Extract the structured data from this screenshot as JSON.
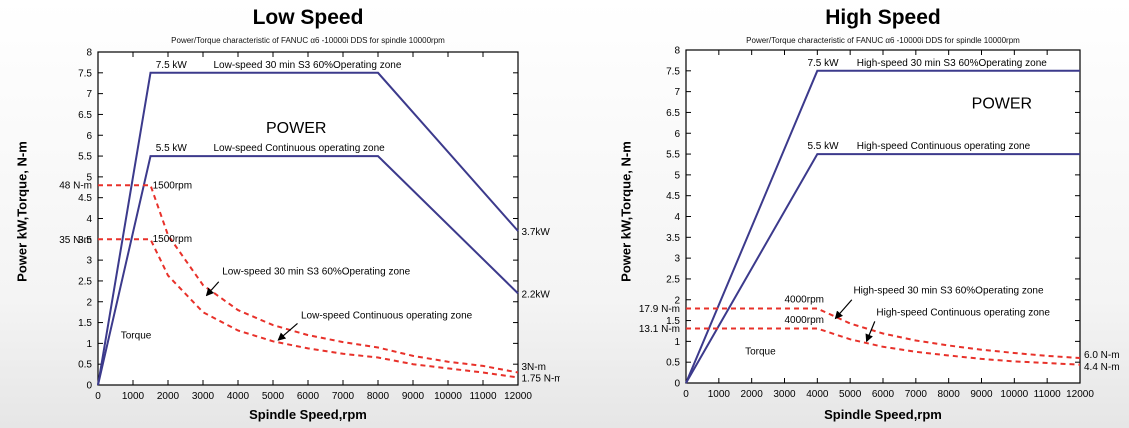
{
  "chart_data": [
    {
      "type": "line",
      "title": "Low Speed",
      "subtitle": "Power/Torque characteristic of FANUC α6 -10000i DDS for spindle 10000rpm",
      "xlabel": "Spindle Speed,rpm",
      "ylabel": "Power kW,Torque, N-m",
      "xlim": [
        0,
        12000
      ],
      "ylim": [
        0,
        8
      ],
      "xticks": [
        0,
        1000,
        2000,
        3000,
        4000,
        5000,
        6000,
        7000,
        8000,
        9000,
        10000,
        11000,
        12000
      ],
      "yticks": [
        0,
        0.5,
        1,
        1.5,
        2,
        2.5,
        3,
        3.5,
        4,
        4.5,
        5,
        5.5,
        6,
        6.5,
        7,
        7.5,
        8
      ],
      "grid": false,
      "series": [
        {
          "style": "power",
          "x": [
            0,
            1500,
            8000,
            12000
          ],
          "y": [
            0,
            7.5,
            7.5,
            3.7
          ]
        },
        {
          "style": "power",
          "x": [
            0,
            1500,
            8000,
            12000
          ],
          "y": [
            0,
            5.5,
            5.5,
            2.2
          ]
        },
        {
          "style": "torque",
          "x": [
            0,
            1500,
            2000,
            3000,
            4000,
            5000,
            6000,
            7000,
            8000,
            9000,
            10000,
            11000,
            12000
          ],
          "y": [
            4.8,
            4.8,
            3.6,
            2.4,
            1.8,
            1.44,
            1.2,
            1.03,
            0.9,
            0.7,
            0.56,
            0.46,
            0.3
          ]
        },
        {
          "style": "torque",
          "x": [
            0,
            1500,
            2000,
            3000,
            4000,
            5000,
            6000,
            7000,
            8000,
            9000,
            10000,
            11000,
            12000
          ],
          "y": [
            3.5,
            3.5,
            2.63,
            1.75,
            1.31,
            1.05,
            0.88,
            0.75,
            0.66,
            0.5,
            0.4,
            0.3,
            0.18
          ]
        }
      ],
      "annotations": [
        {
          "text": "7.5 kW",
          "x": 1650,
          "y": 7.62
        },
        {
          "text": "Low-speed 30 min S3 60%Operating zone",
          "x": 3300,
          "y": 7.62
        },
        {
          "text": "POWER",
          "x": 4800,
          "y": 6.05,
          "size": "big"
        },
        {
          "text": "5.5 kW",
          "x": 1650,
          "y": 5.62
        },
        {
          "text": "Low-speed Continuous operating zone",
          "x": 3300,
          "y": 5.62
        },
        {
          "text": "1500rpm",
          "x": 1560,
          "y": 4.72
        },
        {
          "text": "1500rpm",
          "x": 1560,
          "y": 3.43
        },
        {
          "text": "Low-speed 30 min S3 60%Operating zone",
          "x": 3550,
          "y": 2.65
        },
        {
          "text": "Low-speed Continuous operating zone",
          "x": 5800,
          "y": 1.6
        },
        {
          "text": "Torque",
          "x": 650,
          "y": 1.12
        },
        {
          "text": "3.7kW",
          "x": 12100,
          "y": 3.6
        },
        {
          "text": "2.2kW",
          "x": 12100,
          "y": 2.1
        },
        {
          "text": "3N-m",
          "x": 12100,
          "y": 0.36
        },
        {
          "text": "1.75 N-m",
          "x": 12100,
          "y": 0.08
        }
      ],
      "arrows": [
        {
          "from": [
            3450,
            2.48
          ],
          "to": [
            3100,
            2.15
          ]
        },
        {
          "from": [
            5700,
            1.48
          ],
          "to": [
            5150,
            1.08
          ]
        }
      ],
      "left_labels": [
        {
          "text": "48 N-m",
          "y": 4.8
        },
        {
          "text": "35 N-m",
          "y": 3.5
        }
      ]
    },
    {
      "type": "line",
      "title": "High Speed",
      "subtitle": "Power/Torque characteristic of FANUC α6 -10000i DDS for spindle 10000rpm",
      "xlabel": "Spindle Speed,rpm",
      "ylabel": "Power kW,Torque, N-m",
      "xlim": [
        0,
        12000
      ],
      "ylim": [
        0,
        8
      ],
      "xticks": [
        0,
        1000,
        2000,
        3000,
        4000,
        5000,
        6000,
        7000,
        8000,
        9000,
        10000,
        11000,
        12000
      ],
      "yticks": [
        0,
        0.5,
        1,
        1.5,
        2,
        2.5,
        3,
        3.5,
        4,
        4.5,
        5,
        5.5,
        6,
        6.5,
        7,
        7.5,
        8
      ],
      "grid": false,
      "series": [
        {
          "style": "power",
          "x": [
            0,
            4000,
            12000
          ],
          "y": [
            0,
            7.5,
            7.5
          ]
        },
        {
          "style": "power",
          "x": [
            0,
            4000,
            12000
          ],
          "y": [
            0,
            5.5,
            5.5
          ]
        },
        {
          "style": "torque",
          "x": [
            0,
            4000,
            5000,
            6000,
            7000,
            8000,
            9000,
            10000,
            11000,
            12000
          ],
          "y": [
            1.79,
            1.79,
            1.43,
            1.19,
            1.02,
            0.9,
            0.8,
            0.72,
            0.65,
            0.6
          ]
        },
        {
          "style": "torque",
          "x": [
            0,
            4000,
            5000,
            6000,
            7000,
            8000,
            9000,
            10000,
            11000,
            12000
          ],
          "y": [
            1.31,
            1.31,
            1.05,
            0.87,
            0.75,
            0.66,
            0.58,
            0.52,
            0.48,
            0.44
          ]
        }
      ],
      "annotations": [
        {
          "text": "7.5 kW",
          "x": 3700,
          "y": 7.62
        },
        {
          "text": "High-speed 30 min S3 60%Operating zone",
          "x": 5200,
          "y": 7.62
        },
        {
          "text": "POWER",
          "x": 8700,
          "y": 6.6,
          "size": "big"
        },
        {
          "text": "5.5 kW",
          "x": 3700,
          "y": 5.62
        },
        {
          "text": "High-speed Continuous operating zone",
          "x": 5200,
          "y": 5.62
        },
        {
          "text": "4000rpm",
          "x": 3000,
          "y": 1.93
        },
        {
          "text": "4000rpm",
          "x": 3000,
          "y": 1.44
        },
        {
          "text": "High-speed 30 min S3 60%Operating zone",
          "x": 5100,
          "y": 2.15
        },
        {
          "text": "High-speed Continuous operating zone",
          "x": 5800,
          "y": 1.62
        },
        {
          "text": "Torque",
          "x": 1800,
          "y": 0.68
        }
      ],
      "arrows": [
        {
          "from": [
            5050,
            2.0
          ],
          "to": [
            4550,
            1.55
          ]
        },
        {
          "from": [
            5750,
            1.48
          ],
          "to": [
            5500,
            1.0
          ]
        }
      ],
      "left_labels": [
        {
          "text": "17.9 N-m",
          "y": 1.79
        },
        {
          "text": "13.1 N-m",
          "y": 1.31
        }
      ],
      "right_labels": [
        {
          "text": "6.0 N-m",
          "y": 0.68
        },
        {
          "text": "4.4 N-m",
          "y": 0.4
        }
      ]
    }
  ],
  "colors": {
    "power": "#3c3a8c",
    "torque": "#e8312a",
    "axis": "#000000"
  }
}
